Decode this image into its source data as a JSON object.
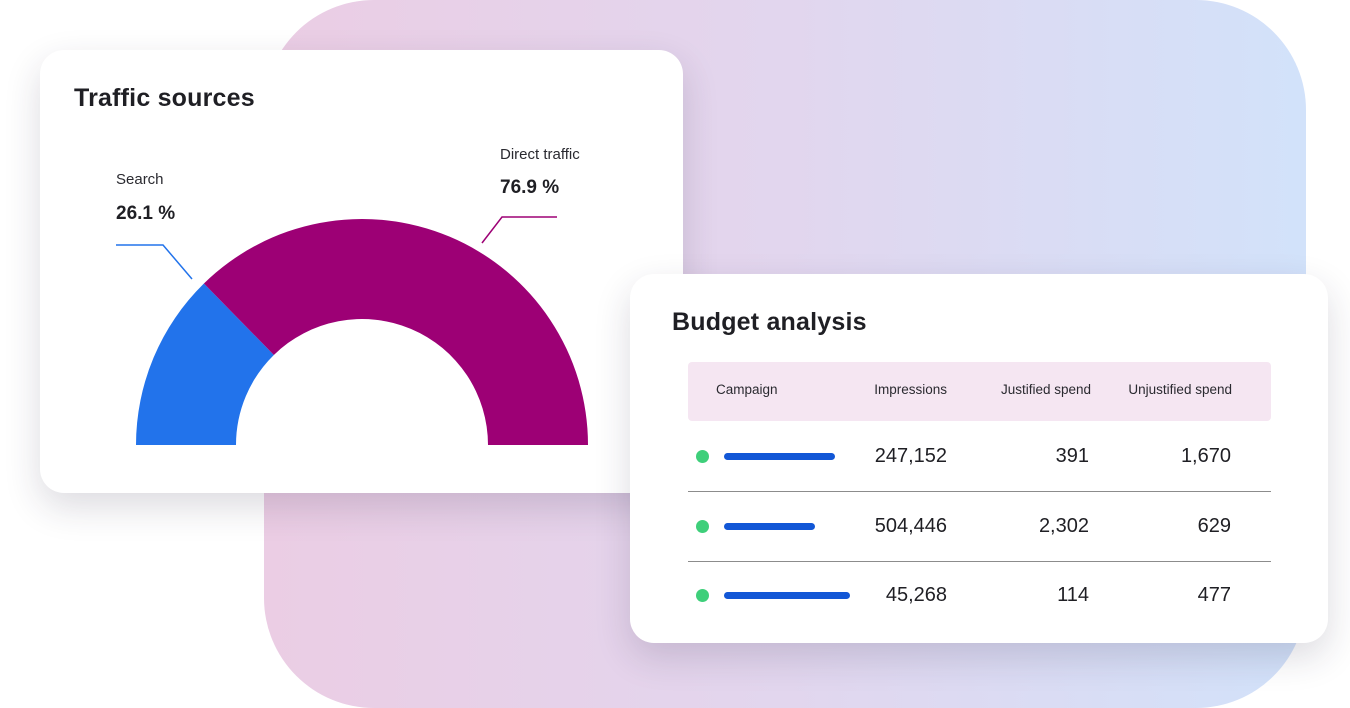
{
  "colors": {
    "search": "#2273eb",
    "direct": "#9d0075",
    "status_dot": "#3ecf7a",
    "campaign_bar": "#1257d6"
  },
  "traffic": {
    "title": "Traffic sources",
    "search": {
      "label": "Search",
      "value": "26.1 %"
    },
    "direct": {
      "label": "Direct traffic",
      "value": "76.9 %"
    }
  },
  "chart_data": {
    "type": "pie",
    "title": "Traffic sources",
    "categories": [
      "Search",
      "Direct traffic"
    ],
    "values": [
      26.1,
      76.9
    ],
    "value_labels": [
      "26.1 %",
      "76.9 %"
    ],
    "shape": "half-donut",
    "colors": [
      "#2273eb",
      "#9d0075"
    ]
  },
  "budget": {
    "title": "Budget analysis",
    "columns": [
      "Campaign",
      "Impressions",
      "Justified spend",
      "Unjustified spend"
    ],
    "rows": [
      {
        "impressions": "247,152",
        "justified": "391",
        "unjustified": "1,670",
        "bar_fraction": 0.88
      },
      {
        "impressions": "504,446",
        "justified": "2,302",
        "unjustified": "629",
        "bar_fraction": 0.72
      },
      {
        "impressions": "45,268",
        "justified": "114",
        "unjustified": "477",
        "bar_fraction": 1.0
      }
    ]
  }
}
